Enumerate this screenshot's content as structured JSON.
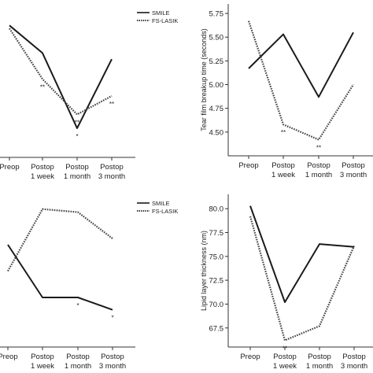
{
  "chart_data": [
    {
      "type": "line",
      "categories": [
        "Preop",
        "Postop\n1 week",
        "Postop\n1 month",
        "Postop\n3 month"
      ],
      "title": "",
      "xlabel": "",
      "ylabel": "",
      "yticks": [],
      "ylim": [
        0,
        10
      ],
      "grid": false,
      "legend": {
        "placement": "top-right",
        "entries": [
          "SMILE",
          "FS-LASIK"
        ]
      },
      "series": [
        {
          "name": "SMILE",
          "style": "solid",
          "values": [
            8.6,
            6.8,
            1.9,
            6.4
          ],
          "annotations": [
            "",
            "",
            "*",
            ""
          ]
        },
        {
          "name": "FS-LASIK",
          "style": "dotted",
          "values": [
            8.4,
            5.1,
            2.8,
            4.0
          ],
          "annotations": [
            "",
            "**",
            "**",
            "**"
          ]
        }
      ]
    },
    {
      "type": "line",
      "categories": [
        "Preop",
        "Postop\n1 week",
        "Postop\n1 month",
        "Postop\n3 month"
      ],
      "title": "",
      "xlabel": "",
      "ylabel": "Tear film breakup time (seconds)",
      "yticks": [
        "4.50",
        "4.75",
        "5.00",
        "5.25",
        "5.50",
        "5.75"
      ],
      "ylim": [
        4.25,
        5.85
      ],
      "grid": false,
      "legend": null,
      "series": [
        {
          "name": "SMILE",
          "style": "solid",
          "values": [
            5.17,
            5.53,
            4.87,
            5.55
          ],
          "annotations": [
            "",
            "",
            "",
            ""
          ]
        },
        {
          "name": "FS-LASIK",
          "style": "dotted",
          "values": [
            5.67,
            4.58,
            4.42,
            5.0
          ],
          "annotations": [
            "",
            "**",
            "**",
            ""
          ]
        }
      ]
    },
    {
      "type": "line",
      "categories": [
        "Preop",
        "Postop\n1 week",
        "Postop\n1 month",
        "Postop\n3 month"
      ],
      "title": "",
      "xlabel": "",
      "ylabel": "",
      "yticks": [],
      "ylim": [
        0,
        10
      ],
      "grid": false,
      "legend": {
        "placement": "top-right",
        "entries": [
          "SMILE",
          "FS-LASIK"
        ]
      },
      "series": [
        {
          "name": "SMILE",
          "style": "solid",
          "values": [
            6.6,
            3.2,
            3.2,
            2.4
          ],
          "annotations": [
            "",
            "",
            "*",
            "*"
          ]
        },
        {
          "name": "FS-LASIK",
          "style": "dotted",
          "values": [
            4.9,
            8.9,
            8.7,
            7.0
          ],
          "annotations": [
            "",
            "",
            "",
            ""
          ]
        }
      ]
    },
    {
      "type": "line",
      "categories": [
        "Preop",
        "Postop\n1 week",
        "Postop\n1 month",
        "Postop\n3 month"
      ],
      "title": "",
      "xlabel": "",
      "ylabel": "Lipid layer thickness (nm)",
      "yticks": [
        "67.5",
        "70.0",
        "72.5",
        "75.0",
        "77.5",
        "80.0"
      ],
      "ylim": [
        65.5,
        81.5
      ],
      "grid": false,
      "legend": null,
      "series": [
        {
          "name": "SMILE",
          "style": "solid",
          "values": [
            80.3,
            70.2,
            76.3,
            76.0
          ],
          "annotations": [
            "",
            "",
            "",
            ""
          ]
        },
        {
          "name": "FS-LASIK",
          "style": "dotted",
          "values": [
            79.2,
            66.2,
            67.7,
            76.1
          ],
          "annotations": [
            "",
            "**",
            "",
            ""
          ]
        }
      ]
    }
  ]
}
